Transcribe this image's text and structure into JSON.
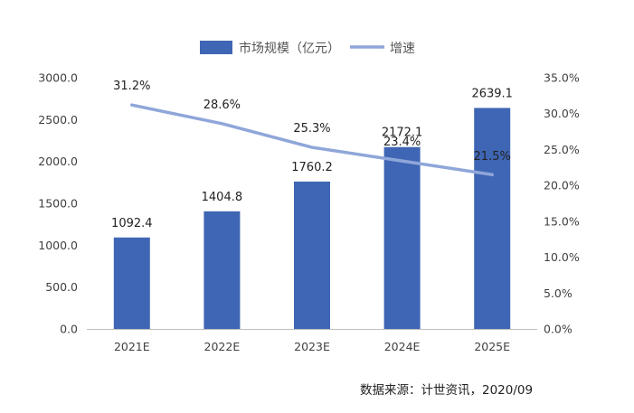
{
  "chart_data": {
    "type": "bar",
    "categories": [
      "2021E",
      "2022E",
      "2023E",
      "2024E",
      "2025E"
    ],
    "series": [
      {
        "name": "市场规模（亿元）",
        "type": "bar",
        "axis": "left",
        "values": [
          1092.4,
          1404.8,
          1760.2,
          2172.1,
          2639.1
        ],
        "labels": [
          "1092.4",
          "1404.8",
          "1760.2",
          "2172.1",
          "2639.1"
        ],
        "color": "#3f66b4"
      },
      {
        "name": "增速",
        "type": "line",
        "axis": "right",
        "values": [
          31.2,
          28.6,
          25.3,
          23.4,
          21.5
        ],
        "labels": [
          "31.2%",
          "28.6%",
          "25.3%",
          "23.4%",
          "21.5%"
        ],
        "color": "#8fa6d9"
      }
    ],
    "y_left": {
      "range": [
        0,
        3000
      ],
      "ticks": [
        "0.0",
        "500.0",
        "1000.0",
        "1500.0",
        "2000.0",
        "2500.0",
        "3000.0"
      ]
    },
    "y_right": {
      "range": [
        0,
        35
      ],
      "ticks": [
        "0.0%",
        "5.0%",
        "10.0%",
        "15.0%",
        "20.0%",
        "25.0%",
        "30.0%",
        "35.0%"
      ]
    },
    "legend": {
      "position": "top"
    },
    "grid": false
  },
  "source": "数据来源：计世资讯，2020/09"
}
